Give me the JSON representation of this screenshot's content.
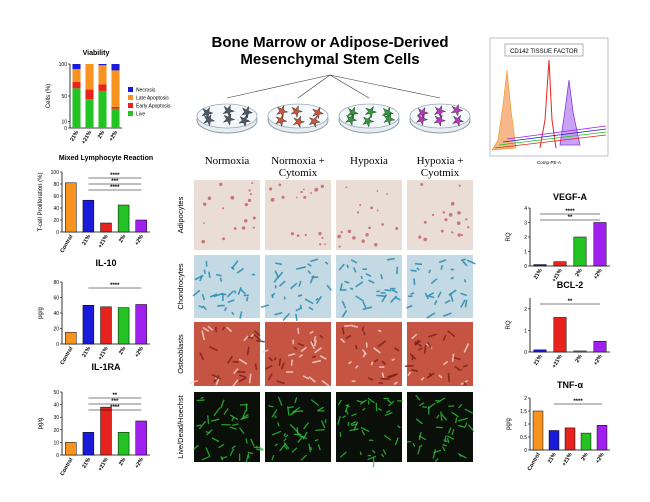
{
  "header": {
    "title": "Bone Marrow or Adipose-Derived Mesenchymal Stem Cells"
  },
  "columns": [
    "Normoxia",
    "Normoxia + Cytomix",
    "Hypoxia",
    "Hypoxia + Cyotmix"
  ],
  "rows": [
    "Adipocytes",
    "Chondrocytes",
    "Osteoblasts",
    "Live/Dead/Hoechst"
  ],
  "flow_panel": {
    "title": "CD142 TISSUE FACTOR",
    "xlabel": "Comp-PE-A"
  },
  "chart_data": [
    {
      "type": "bar",
      "stacked": true,
      "title": "Viability",
      "ylabel": "Cells (%)",
      "categories": [
        "21%",
        "+21%",
        "2%",
        "+2%"
      ],
      "series": [
        {
          "name": "Live",
          "color": "#22c322",
          "values": [
            62,
            45,
            58,
            30
          ]
        },
        {
          "name": "Early Apoptosis",
          "color": "#e8221c",
          "values": [
            10,
            15,
            10,
            3
          ]
        },
        {
          "name": "Late Apoptosis",
          "color": "#f7931e",
          "values": [
            20,
            40,
            30,
            57
          ]
        },
        {
          "name": "Necrosis",
          "color": "#1a1adb",
          "values": [
            8,
            0,
            2,
            10
          ]
        }
      ],
      "legend_series_order": [
        3,
        2,
        1,
        0
      ],
      "ylim": [
        0,
        100
      ],
      "yticks": [
        0,
        10,
        50,
        100
      ]
    },
    {
      "type": "bar",
      "title": "Mixed Lymphocyte Reaction",
      "ylabel": "T-cell Proliferation (%)",
      "categories": [
        "Control",
        "21%",
        "+21%",
        "2%",
        "+2%"
      ],
      "values": [
        82,
        53,
        15,
        45,
        20
      ],
      "colors": [
        "#f7931e",
        "#1a1adb",
        "#e8221c",
        "#22c322",
        "#a020f0"
      ],
      "ylim": [
        0,
        100
      ],
      "yticks": [
        0,
        20,
        40,
        60,
        80,
        100
      ],
      "annotations": [
        "****",
        "***",
        "****"
      ]
    },
    {
      "type": "bar",
      "title": "IL-10",
      "ylabel": "pg/g",
      "categories": [
        "Control",
        "21%",
        "+21%",
        "2%",
        "+2%"
      ],
      "values": [
        15,
        50,
        48,
        47,
        51
      ],
      "colors": [
        "#f7931e",
        "#1a1adb",
        "#e8221c",
        "#22c322",
        "#a020f0"
      ],
      "ylim": [
        0,
        80
      ],
      "yticks": [
        0,
        20,
        40,
        60,
        80
      ],
      "annotations": [
        "****"
      ]
    },
    {
      "type": "bar",
      "title": "IL-1RA",
      "ylabel": "pg/g",
      "categories": [
        "Control",
        "21%",
        "+21%",
        "2%",
        "+2%"
      ],
      "values": [
        10,
        18,
        38,
        18,
        27
      ],
      "colors": [
        "#f7931e",
        "#1a1adb",
        "#e8221c",
        "#22c322",
        "#a020f0"
      ],
      "ylim": [
        0,
        50
      ],
      "yticks": [
        0,
        10,
        20,
        30,
        40,
        50
      ],
      "annotations": [
        "**",
        "***",
        "****"
      ]
    },
    {
      "type": "bar",
      "title": "VEGF-A",
      "ylabel": "RQ",
      "categories": [
        "21%",
        "+21%",
        "2%",
        "+2%"
      ],
      "values": [
        0.1,
        0.3,
        2,
        3
      ],
      "colors": [
        "#1a1adb",
        "#e8221c",
        "#22c322",
        "#a020f0"
      ],
      "ylim": [
        0,
        4
      ],
      "yticks": [
        0,
        1,
        2,
        3,
        4
      ],
      "annotations": [
        "****",
        "**"
      ]
    },
    {
      "type": "bar",
      "title": "BCL-2",
      "ylabel": "RQ",
      "categories": [
        "21%",
        "+21%",
        "2%",
        "+2%"
      ],
      "values": [
        0.1,
        1.6,
        0.05,
        0.5
      ],
      "colors": [
        "#1a1adb",
        "#e8221c",
        "#22c322",
        "#a020f0"
      ],
      "ylim": [
        0,
        2.5
      ],
      "yticks": [
        0,
        1,
        2
      ],
      "annotations": [
        "**"
      ]
    },
    {
      "type": "bar",
      "title": "TNF-α",
      "ylabel": "pg/g",
      "categories": [
        "Control",
        "21%",
        "+21%",
        "2%",
        "+2%"
      ],
      "values": [
        1.5,
        0.75,
        0.85,
        0.65,
        0.95
      ],
      "colors": [
        "#f7931e",
        "#1a1adb",
        "#e8221c",
        "#22c322",
        "#a020f0"
      ],
      "ylim": [
        0,
        2
      ],
      "yticks": [
        0,
        0.5,
        1,
        1.5,
        2
      ],
      "annotations": [
        "****"
      ]
    }
  ]
}
